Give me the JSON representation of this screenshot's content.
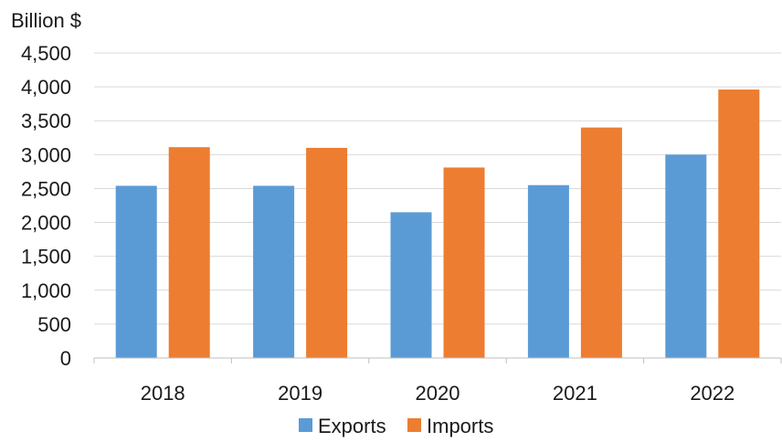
{
  "chart_data": {
    "type": "bar",
    "ylabel": "Billion $",
    "categories": [
      "2018",
      "2019",
      "2020",
      "2021",
      "2022"
    ],
    "series": [
      {
        "name": "Exports",
        "color": "#5b9bd5",
        "values": [
          2540,
          2540,
          2150,
          2550,
          3000
        ]
      },
      {
        "name": "Imports",
        "color": "#ed7d31",
        "values": [
          3110,
          3100,
          2810,
          3400,
          3960
        ]
      }
    ],
    "ylim": [
      0,
      4500
    ],
    "yticks": [
      0,
      500,
      1000,
      1500,
      2000,
      2500,
      3000,
      3500,
      4000,
      4500
    ],
    "ytick_labels": [
      "0",
      "500",
      "1,000",
      "1,500",
      "2,000",
      "2,500",
      "3,000",
      "3,500",
      "4,000",
      "4,500"
    ],
    "grid": true,
    "legend": "bottom",
    "gridline_color": "#d9d9d9",
    "axis_color": "#bfbfbf"
  }
}
